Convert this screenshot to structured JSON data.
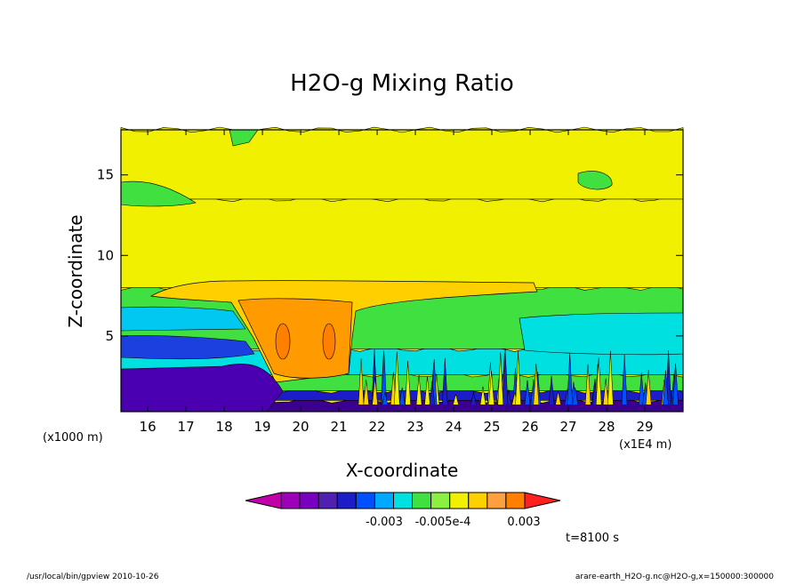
{
  "chart_data": {
    "type": "heatmap",
    "title": "H2O-g Mixing Ratio",
    "xlabel": "X-coordinate",
    "ylabel": "Z-coordinate",
    "x_unit_left": "(x1000 m)",
    "x_unit_right": "(x1E4 m)",
    "xlim": [
      15.3,
      30.0
    ],
    "ylim": [
      0.3,
      17.8
    ],
    "x_ticks": [
      "16",
      "17",
      "18",
      "19",
      "20",
      "21",
      "22",
      "23",
      "24",
      "25",
      "26",
      "27",
      "28",
      "29"
    ],
    "y_ticks": [
      "5",
      "10",
      "15"
    ],
    "colorbar": {
      "colors": [
        "#c000a8",
        "#9c00b8",
        "#7a00c0",
        "#5020b0",
        "#1c1cc8",
        "#0050ff",
        "#00a8ff",
        "#00e0e0",
        "#40e040",
        "#8cf040",
        "#f0f000",
        "#ffd000",
        "#ffa040",
        "#ff8000",
        "#ff2020"
      ],
      "labels": [
        "-0.003",
        "-0.005e-4",
        "0.003"
      ]
    },
    "bands": [
      {
        "z_low": 0.3,
        "z_high": 1.0,
        "color": "#3c0090"
      },
      {
        "z_low": 1.0,
        "z_high": 1.6,
        "color": "#1c1cc8"
      },
      {
        "z_low": 1.6,
        "z_high": 2.6,
        "color": "#40e040"
      },
      {
        "z_low": 2.6,
        "z_high": 4.2,
        "color": "#00e0e0"
      },
      {
        "z_low": 4.2,
        "z_high": 8.0,
        "color": "#40e040"
      },
      {
        "z_low": 8.0,
        "z_high": 13.5,
        "color": "#f0f000"
      },
      {
        "z_low": 13.5,
        "z_high": 17.8,
        "color": "#f0f000"
      }
    ],
    "time_label": "t=8100 s",
    "footer_left": "/usr/local/bin/gpview   2010-10-26",
    "footer_right": "arare-earth_H2O-g.nc@H2O-g,x=150000:300000"
  }
}
